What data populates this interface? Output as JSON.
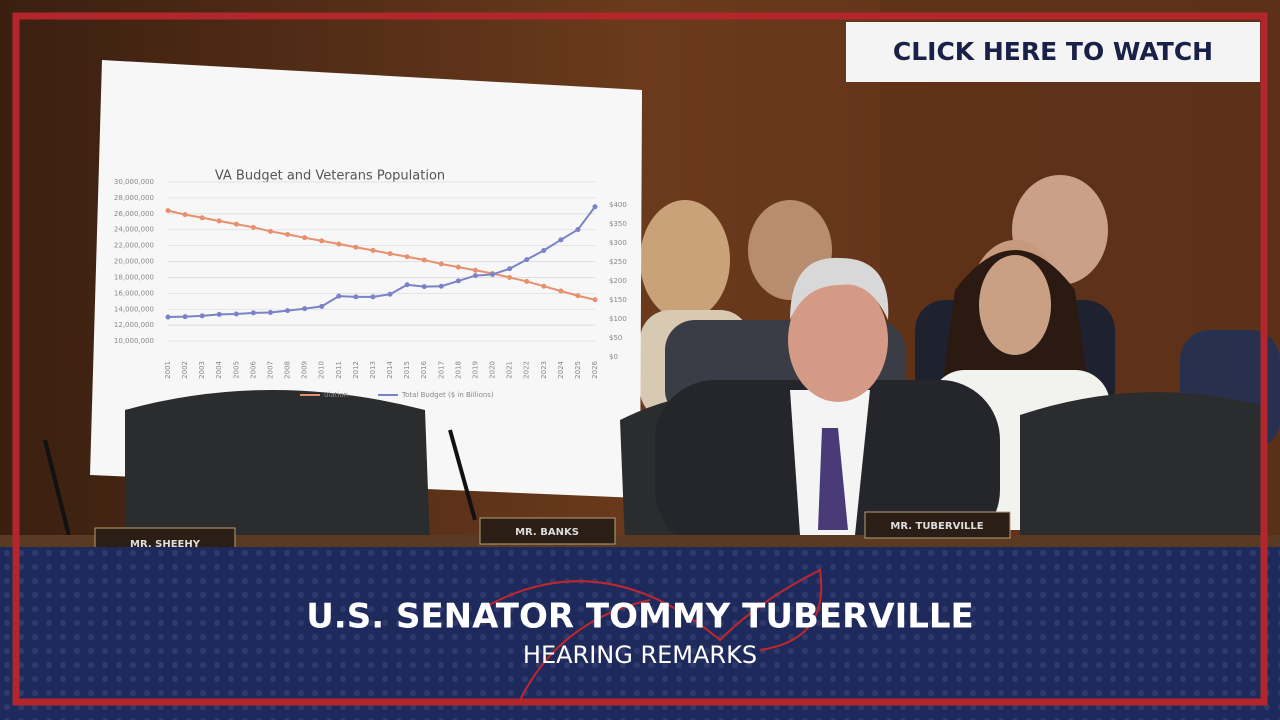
{
  "header": {
    "button": "CLICK HERE TO WATCH"
  },
  "banner": {
    "title": "U.S. SENATOR TOMMY TUBERVILLE",
    "subtitle": "HEARING REMARKS"
  },
  "nameplates": [
    "MR. SHEEHY",
    "MR. BANKS",
    "MR. TUBERVILLE"
  ],
  "poster": {
    "chart_data": {
      "type": "line",
      "title": "VA Budget and Veterans Population",
      "categories": [
        "2001",
        "2002",
        "2003",
        "2004",
        "2005",
        "2006",
        "2007",
        "2008",
        "2009",
        "2010",
        "2011",
        "2012",
        "2013",
        "2014",
        "2015",
        "2016",
        "2017",
        "2018",
        "2019",
        "2020",
        "2021",
        "2022",
        "2023",
        "2024",
        "2025",
        "2026"
      ],
      "series": [
        {
          "name": "ulation",
          "color": "#e8906e",
          "values": [
            26400000,
            25900000,
            25500000,
            25100000,
            24700000,
            24300000,
            23800000,
            23400000,
            23000000,
            22600000,
            22200000,
            21800000,
            21400000,
            21000000,
            20600000,
            20200000,
            19700000,
            19300000,
            18900000,
            18500000,
            18000000,
            17500000,
            16900000,
            16300000,
            15700000,
            15200000
          ]
        },
        {
          "name": "Total Budget ($ in Billions)",
          "color": "#7a82c8",
          "axis": "y2",
          "values": [
            105,
            106,
            108,
            112,
            113,
            116,
            117,
            122,
            127,
            133,
            160,
            158,
            158,
            165,
            190,
            185,
            186,
            200,
            214,
            217,
            232,
            256,
            280,
            308,
            335,
            395
          ]
        }
      ],
      "ylim": [
        8000000,
        30000000
      ],
      "yticks": [
        {
          "value": 10000000,
          "label": "10,000,000"
        },
        {
          "value": 12000000,
          "label": "12,000,000"
        },
        {
          "value": 14000000,
          "label": "14,000,000"
        },
        {
          "value": 16000000,
          "label": "16,000,000"
        },
        {
          "value": 18000000,
          "label": "18,000,000"
        },
        {
          "value": 20000000,
          "label": "20,000,000"
        },
        {
          "value": 22000000,
          "label": "22,000,000"
        },
        {
          "value": 24000000,
          "label": "24,000,000"
        },
        {
          "value": 26000000,
          "label": "26,000,000"
        },
        {
          "value": 28000000,
          "label": "28,000,000"
        },
        {
          "value": 30000000,
          "label": "30,000,000"
        }
      ],
      "y2lim": [
        0,
        460
      ],
      "y2ticks": [
        {
          "value": 0,
          "label": "$0"
        },
        {
          "value": 50,
          "label": "$50"
        },
        {
          "value": 100,
          "label": "$100"
        },
        {
          "value": 150,
          "label": "$150"
        },
        {
          "value": 200,
          "label": "$200"
        },
        {
          "value": 250,
          "label": "$250"
        },
        {
          "value": 300,
          "label": "$300"
        },
        {
          "value": 350,
          "label": "$350"
        },
        {
          "value": 400,
          "label": "$400"
        }
      ],
      "grid": true
    }
  }
}
